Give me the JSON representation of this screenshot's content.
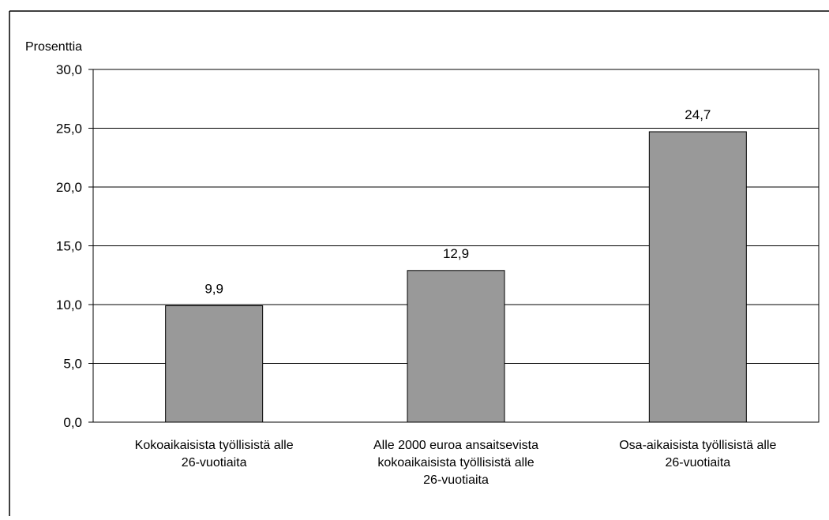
{
  "chart_data": {
    "type": "bar",
    "ylabel": "Prosenttia",
    "ylim": [
      0,
      30
    ],
    "yticks": [
      "0,0",
      "5,0",
      "10,0",
      "15,0",
      "20,0",
      "25,0",
      "30,0"
    ],
    "grid": true,
    "categories": [
      "Kokoaikaisista työllisistä alle\n26-vuotiaita",
      "Alle 2000 euroa ansaitsevista\nkokoaikaisista työllisistä alle\n26-vuotiaita",
      "Osa-aikaisista työllisistä alle\n26-vuotiaita"
    ],
    "values": [
      9.9,
      12.9,
      24.7
    ],
    "value_labels": [
      "9,9",
      "12,9",
      "24,7"
    ],
    "colors": {
      "bar": "#999999",
      "bar_stroke": "#000000",
      "grid": "#000000",
      "frame": "#000000"
    }
  }
}
